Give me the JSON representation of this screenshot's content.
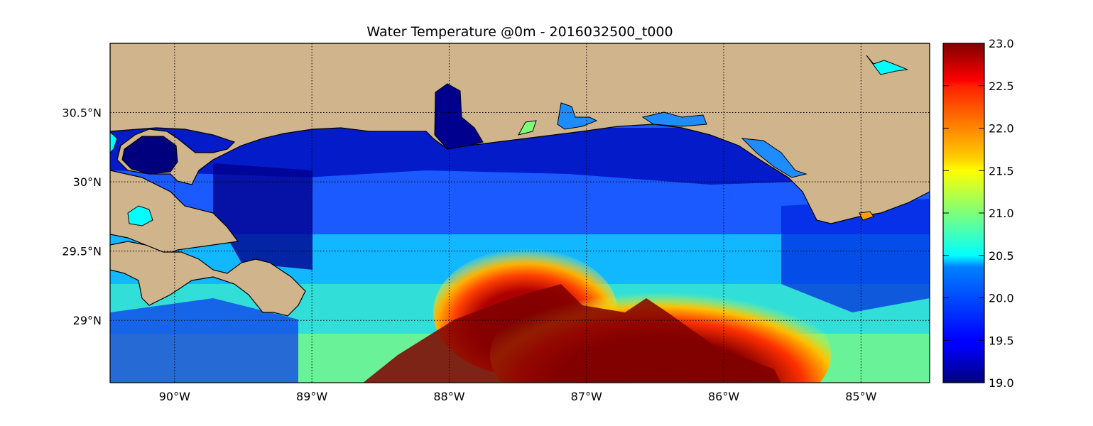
{
  "title": "Water Temperature @0m - 2016032500_t000",
  "map": {
    "lon_range": [
      -90.47,
      -84.5
    ],
    "lat_range": [
      28.55,
      31.0
    ],
    "gridlines": "dotted",
    "land_color": "#cfb48c",
    "lon_ticks": [
      {
        "value": -90,
        "label": "90°W"
      },
      {
        "value": -89,
        "label": "89°W"
      },
      {
        "value": -88,
        "label": "88°W"
      },
      {
        "value": -87,
        "label": "87°W"
      },
      {
        "value": -86,
        "label": "86°W"
      },
      {
        "value": -85,
        "label": "85°W"
      }
    ],
    "lat_ticks": [
      {
        "value": 30.5,
        "label": "30.5°N"
      },
      {
        "value": 30.0,
        "label": "30°N"
      },
      {
        "value": 29.5,
        "label": "29.5°N"
      },
      {
        "value": 29.0,
        "label": "29°N"
      }
    ]
  },
  "colorbar": {
    "min": 19.0,
    "max": 23.0,
    "colormap": "jet",
    "ticks": [
      "19.0",
      "19.5",
      "20.0",
      "20.5",
      "21.0",
      "21.5",
      "22.0",
      "22.5",
      "23.0"
    ]
  }
}
